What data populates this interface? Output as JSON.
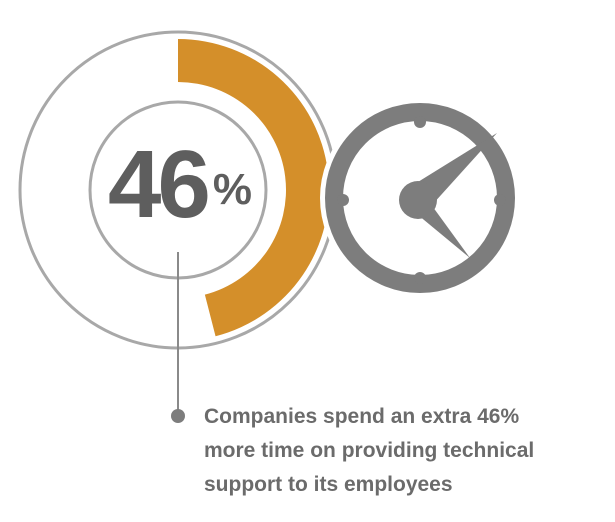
{
  "chart_data": {
    "type": "donut",
    "value": 46,
    "value_label": "46%",
    "color": "#d48f2a",
    "caption_lines": [
      "Companies spend an extra 46%",
      "more time on providing technical",
      "support to its employees"
    ]
  }
}
